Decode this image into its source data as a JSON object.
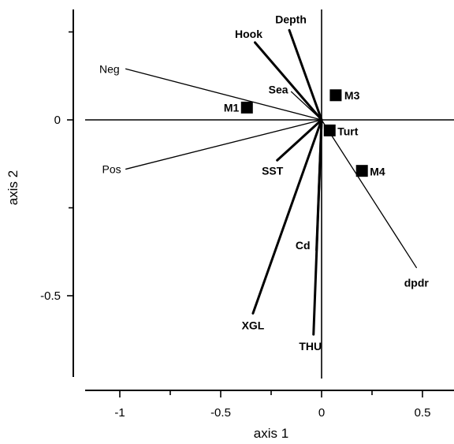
{
  "chart_data": {
    "type": "scatter",
    "title": "",
    "xlabel": "axis 1",
    "ylabel": "axis 2",
    "xlim": [
      -1.2,
      0.65
    ],
    "ylim": [
      -0.73,
      0.32
    ],
    "x_ticks": [
      {
        "value": -1,
        "label": "-1"
      },
      {
        "value": -0.5,
        "label": "-0.5"
      },
      {
        "value": 0,
        "label": "0"
      },
      {
        "value": 0.5,
        "label": "0.5"
      }
    ],
    "y_ticks": [
      {
        "value": 0,
        "label": "0"
      },
      {
        "value": -0.5,
        "label": "-0.5"
      }
    ],
    "y_minor_ticks": [
      0.25,
      -0.25
    ],
    "x_minor_ticks": [
      -1.25,
      -0.75,
      -0.25,
      0.25
    ],
    "vectors": [
      {
        "label": "Neg",
        "x": -0.97,
        "y": 0.145,
        "weight": "thin"
      },
      {
        "label": "Pos",
        "x": -0.97,
        "y": -0.14,
        "weight": "thin"
      },
      {
        "label": "Hook",
        "x": -0.33,
        "y": 0.22,
        "weight": "thick"
      },
      {
        "label": "Depth",
        "x": -0.16,
        "y": 0.255,
        "weight": "thick"
      },
      {
        "label": "Sea",
        "x": -0.15,
        "y": 0.08,
        "weight": "thin"
      },
      {
        "label": "SST",
        "x": -0.22,
        "y": -0.115,
        "weight": "thick"
      },
      {
        "label": "XGL",
        "x": -0.34,
        "y": -0.55,
        "weight": "thick"
      },
      {
        "label": "Cd",
        "x": -0.025,
        "y": -0.37,
        "weight": "thick"
      },
      {
        "label": "THU",
        "x": -0.04,
        "y": -0.61,
        "weight": "thick"
      },
      {
        "label": "dpdr",
        "x": 0.47,
        "y": -0.42,
        "weight": "thin"
      }
    ],
    "points": [
      {
        "label": "M1",
        "x": -0.37,
        "y": 0.035
      },
      {
        "label": "M3",
        "x": 0.07,
        "y": 0.07
      },
      {
        "label": "Turt",
        "x": 0.04,
        "y": -0.03
      },
      {
        "label": "M4",
        "x": 0.2,
        "y": -0.145
      }
    ]
  }
}
